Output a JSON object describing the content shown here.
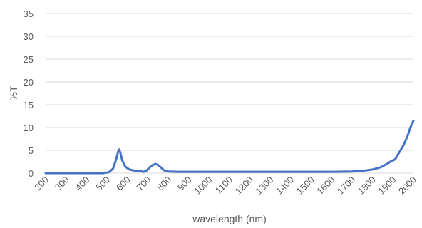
{
  "chart_data": {
    "type": "line",
    "title": "",
    "xlabel": "wavelength (nm)",
    "ylabel": "%T",
    "xlim": [
      200,
      2000
    ],
    "ylim": [
      0,
      35
    ],
    "grid": "horizontal",
    "legend": "none",
    "x_ticks": [
      200,
      300,
      400,
      500,
      600,
      700,
      800,
      900,
      1000,
      1100,
      1200,
      1300,
      1400,
      1500,
      1600,
      1700,
      1800,
      1900,
      2000
    ],
    "y_ticks": [
      0,
      5,
      10,
      15,
      20,
      25,
      30,
      35
    ],
    "series": [
      {
        "color": "#4472c4",
        "points": [
          [
            200,
            0
          ],
          [
            300,
            0
          ],
          [
            400,
            0
          ],
          [
            480,
            0
          ],
          [
            510,
            0.2
          ],
          [
            530,
            1.0
          ],
          [
            545,
            3.0
          ],
          [
            555,
            4.8
          ],
          [
            560,
            5.2
          ],
          [
            565,
            4.6
          ],
          [
            575,
            2.8
          ],
          [
            590,
            1.4
          ],
          [
            610,
            0.8
          ],
          [
            630,
            0.6
          ],
          [
            650,
            0.5
          ],
          [
            665,
            0.4
          ],
          [
            680,
            0.3
          ],
          [
            695,
            0.6
          ],
          [
            710,
            1.3
          ],
          [
            725,
            1.8
          ],
          [
            738,
            2.0
          ],
          [
            750,
            1.8
          ],
          [
            765,
            1.2
          ],
          [
            780,
            0.6
          ],
          [
            800,
            0.35
          ],
          [
            850,
            0.3
          ],
          [
            1000,
            0.3
          ],
          [
            1200,
            0.3
          ],
          [
            1400,
            0.3
          ],
          [
            1600,
            0.3
          ],
          [
            1700,
            0.35
          ],
          [
            1750,
            0.5
          ],
          [
            1800,
            0.8
          ],
          [
            1840,
            1.3
          ],
          [
            1870,
            2.0
          ],
          [
            1890,
            2.6
          ],
          [
            1910,
            3.0
          ],
          [
            1930,
            4.5
          ],
          [
            1950,
            6.0
          ],
          [
            1970,
            8.0
          ],
          [
            1985,
            10.0
          ],
          [
            2000,
            11.5
          ]
        ]
      }
    ]
  }
}
